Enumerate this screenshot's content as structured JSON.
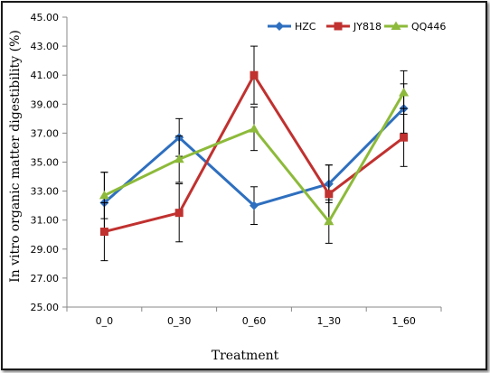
{
  "chart_data": {
    "type": "line",
    "title": "",
    "xlabel": "Treatment",
    "ylabel": "In vitro organic matter digestibility (%)",
    "categories": [
      "0_0",
      "0_30",
      "0_60",
      "1_30",
      "1_60"
    ],
    "ylim": [
      25.0,
      45.0
    ],
    "yticks": [
      "25.00",
      "27.00",
      "29.00",
      "31.00",
      "33.00",
      "35.00",
      "37.00",
      "39.00",
      "41.00",
      "43.00",
      "45.00"
    ],
    "grid": false,
    "legend_position": "top-right",
    "series": [
      {
        "name": "HZC",
        "color": "#2E6FBF",
        "marker": "diamond",
        "values": [
          32.2,
          36.7,
          32.0,
          33.5,
          38.7
        ],
        "errors": [
          2.1,
          1.3,
          1.3,
          1.3,
          1.7
        ]
      },
      {
        "name": "JY818",
        "color": "#C0312F",
        "marker": "square",
        "values": [
          30.2,
          31.5,
          41.0,
          32.8,
          36.7
        ],
        "errors": [
          2.0,
          2.0,
          2.0,
          2.0,
          2.0
        ]
      },
      {
        "name": "QQ446",
        "color": "#8DBA3A",
        "marker": "triangle",
        "values": [
          32.7,
          35.2,
          37.3,
          30.9,
          39.8
        ],
        "errors": [
          1.6,
          1.6,
          1.5,
          1.5,
          1.5
        ]
      }
    ]
  }
}
